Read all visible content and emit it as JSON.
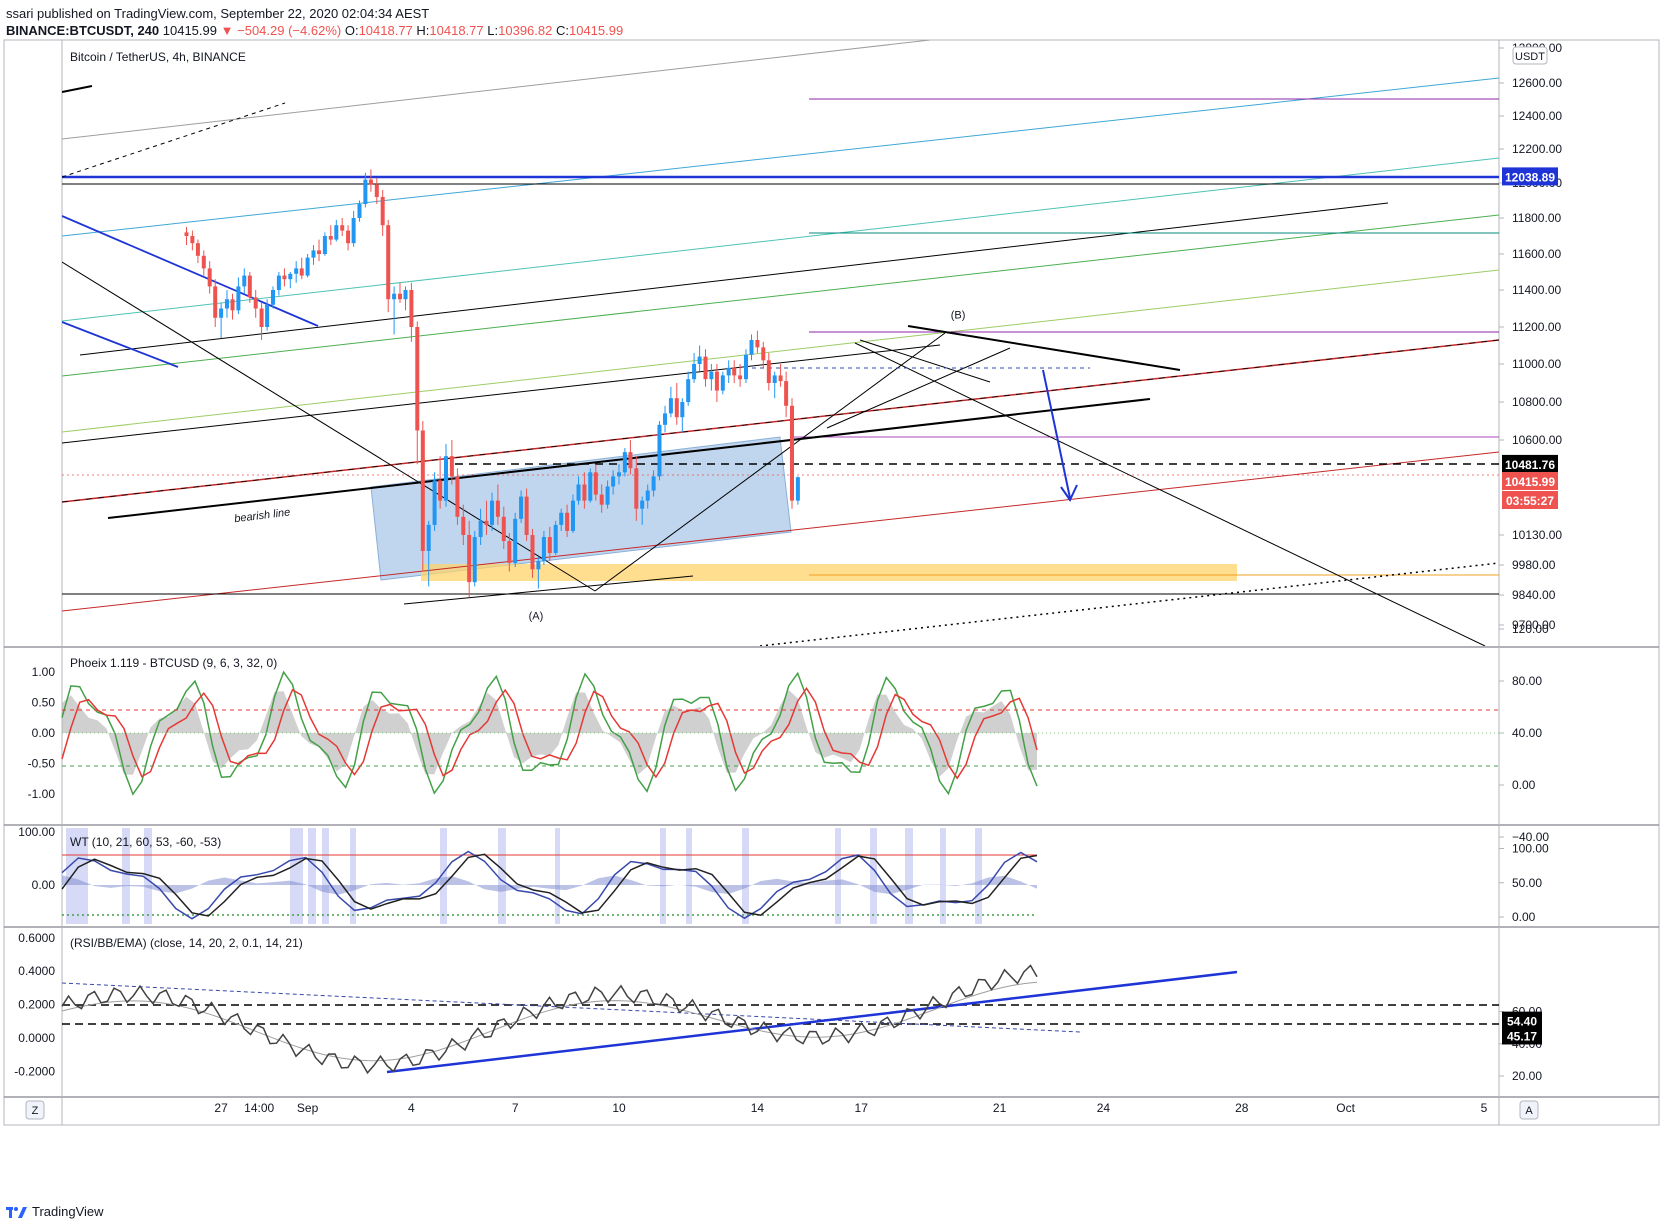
{
  "header": {
    "published": "ssari published on TradingView.com, September 22, 2020 02:04:34 AEST",
    "symbol": "BINANCE:BTCUSDT, 240",
    "last": "10415.99",
    "change": "−504.29 (−4.62%)",
    "o_label": "O:",
    "o": "10418.77",
    "h_label": "H:",
    "h": "10418.77",
    "l_label": "L:",
    "l": "10396.82",
    "c_label": "C:",
    "c": "10415.99"
  },
  "footer": {
    "brand": "TradingView"
  },
  "main_pane": {
    "title": "Bitcoin / TetherUS, 4h, BINANCE",
    "currency": "USDT",
    "top_tick": "12800.00",
    "price_ticks": [
      {
        "label": "12600.00",
        "v": 12600
      },
      {
        "label": "12400.00",
        "v": 12400
      },
      {
        "label": "12200.00",
        "v": 12200
      },
      {
        "label": "12000.00",
        "v": 12000
      },
      {
        "label": "11800.00",
        "v": 11800
      },
      {
        "label": "11600.00",
        "v": 11600
      },
      {
        "label": "11400.00",
        "v": 11400
      },
      {
        "label": "11200.00",
        "v": 11200
      },
      {
        "label": "11000.00",
        "v": 11000
      },
      {
        "label": "10800.00",
        "v": 10800
      },
      {
        "label": "10600.00",
        "v": 10600
      },
      {
        "label": "10130.00",
        "v": 10130
      },
      {
        "label": "9980.00",
        "v": 9980
      },
      {
        "label": "9840.00",
        "v": 9840
      },
      {
        "label": "9700.00",
        "v": 9700
      }
    ],
    "price_tags": [
      {
        "label": "12038.89",
        "v": 12038.89,
        "bg": "#1e34d6",
        "fg": "#ffffff"
      },
      {
        "label": "10481.76",
        "v": 10481.76,
        "bg": "#000000",
        "fg": "#ffffff"
      },
      {
        "label": "10415.99",
        "v": 10415.99,
        "bg": "#ef5350",
        "fg": "#ffffff"
      },
      {
        "label": "03:55:27",
        "v": 10300,
        "bg": "#ef5350",
        "fg": "#ffffff"
      }
    ],
    "annotations": [
      {
        "text": "(B)",
        "x": 9.8,
        "v": 11245
      },
      {
        "text": "(A)",
        "x": -2.4,
        "v": 9725
      },
      {
        "text": "bearish line",
        "x": -10.3,
        "v": 10210
      }
    ]
  },
  "phoenix_pane": {
    "title": "Phoeix 1.119 - BTCUSD (9, 6, 3, 32, 0)",
    "left_ticks": [
      {
        "label": "1.00",
        "v": 1
      },
      {
        "label": "0.50",
        "v": 0.5
      },
      {
        "label": "0.00",
        "v": 0
      },
      {
        "label": "-0.50",
        "v": -0.5
      },
      {
        "label": "-1.00",
        "v": -1
      }
    ],
    "right_ticks": [
      {
        "label": "120.00",
        "v": 120
      },
      {
        "label": "80.00",
        "v": 80
      },
      {
        "label": "40.00",
        "v": 40
      },
      {
        "label": "0.00",
        "v": 0
      },
      {
        "label": "−40.00",
        "v": -40
      }
    ]
  },
  "wt_pane": {
    "title": "WT (10, 21, 60, 53, -60, -53)",
    "left_ticks": [
      {
        "label": "100.00",
        "v": 100
      },
      {
        "label": "0.00",
        "v": 0
      }
    ],
    "right_ticks": [
      {
        "label": "100.00",
        "v": 100
      },
      {
        "label": "50.00",
        "v": 50
      },
      {
        "label": "0.00",
        "v": 0
      }
    ]
  },
  "rsi_pane": {
    "title": "(RSI/BB/EMA) (close, 14, 20, 2, 0.1, 14, 21)",
    "left_ticks": [
      {
        "label": "0.6000",
        "v": 0.6
      },
      {
        "label": "0.4000",
        "v": 0.4
      },
      {
        "label": "0.2000",
        "v": 0.2
      },
      {
        "label": "0.0000",
        "v": 0
      },
      {
        "label": "-0.2000",
        "v": -0.2
      }
    ],
    "right_ticks": [
      {
        "label": "60.00",
        "v": 60
      },
      {
        "label": "40.00",
        "v": 40
      },
      {
        "label": "20.00",
        "v": 20
      }
    ],
    "tags": [
      {
        "label": "54.40",
        "v": 54.4
      },
      {
        "label": "45.17",
        "v": 45.17
      }
    ]
  },
  "time_axis": {
    "labels": [
      {
        "label": "27",
        "d": -11.5
      },
      {
        "label": "14:00",
        "d": -10.4
      },
      {
        "label": "Sep",
        "d": -9
      },
      {
        "label": "4",
        "d": -6
      },
      {
        "label": "7",
        "d": -3
      },
      {
        "label": "10",
        "d": 0
      },
      {
        "label": "14",
        "d": 4
      },
      {
        "label": "17",
        "d": 7
      },
      {
        "label": "21",
        "d": 11
      },
      {
        "label": "24",
        "d": 14
      },
      {
        "label": "28",
        "d": 18
      },
      {
        "label": "Oct",
        "d": 21
      },
      {
        "label": "5",
        "d": 25
      }
    ],
    "left_button": "Z",
    "right_button": "A"
  },
  "chart_data": {
    "type": "candlestick",
    "title": "Bitcoin / TetherUS, 4h, BINANCE",
    "x_unit": "days relative to Sep 10, 2020 (4h candles)",
    "ylim": [
      9630,
      12820
    ],
    "candles": [
      [
        -12.5,
        11720,
        11750,
        11650,
        11700
      ],
      [
        -12.33,
        11700,
        11730,
        11620,
        11660
      ],
      [
        -12.17,
        11660,
        11680,
        11550,
        11590
      ],
      [
        -12.0,
        11590,
        11620,
        11480,
        11520
      ],
      [
        -11.83,
        11520,
        11560,
        11380,
        11420
      ],
      [
        -11.67,
        11420,
        11460,
        11200,
        11250
      ],
      [
        -11.5,
        11250,
        11330,
        11140,
        11300
      ],
      [
        -11.33,
        11300,
        11400,
        11250,
        11350
      ],
      [
        -11.17,
        11350,
        11380,
        11240,
        11290
      ],
      [
        -11.0,
        11290,
        11470,
        11270,
        11420
      ],
      [
        -10.83,
        11420,
        11520,
        11380,
        11480
      ],
      [
        -10.67,
        11480,
        11500,
        11330,
        11360
      ],
      [
        -10.5,
        11360,
        11400,
        11250,
        11300
      ],
      [
        -10.33,
        11300,
        11330,
        11130,
        11200
      ],
      [
        -10.17,
        11200,
        11350,
        11180,
        11320
      ],
      [
        -10.0,
        11320,
        11420,
        11300,
        11400
      ],
      [
        -9.83,
        11400,
        11500,
        11370,
        11480
      ],
      [
        -9.67,
        11480,
        11520,
        11420,
        11460
      ],
      [
        -9.5,
        11460,
        11500,
        11410,
        11490
      ],
      [
        -9.33,
        11490,
        11560,
        11440,
        11520
      ],
      [
        -9.17,
        11520,
        11580,
        11460,
        11480
      ],
      [
        -9.0,
        11480,
        11600,
        11470,
        11580
      ],
      [
        -8.83,
        11580,
        11650,
        11540,
        11620
      ],
      [
        -8.67,
        11620,
        11680,
        11560,
        11600
      ],
      [
        -8.5,
        11600,
        11720,
        11590,
        11700
      ],
      [
        -8.33,
        11700,
        11760,
        11650,
        11680
      ],
      [
        -8.17,
        11680,
        11790,
        11670,
        11760
      ],
      [
        -8.0,
        11760,
        11800,
        11700,
        11730
      ],
      [
        -7.83,
        11730,
        11760,
        11620,
        11660
      ],
      [
        -7.67,
        11660,
        11840,
        11640,
        11800
      ],
      [
        -7.5,
        11800,
        11900,
        11780,
        11880
      ],
      [
        -7.33,
        11880,
        12060,
        11860,
        12020
      ],
      [
        -7.17,
        12020,
        12080,
        11950,
        11990
      ],
      [
        -7.0,
        11990,
        12030,
        11880,
        11920
      ],
      [
        -6.83,
        11920,
        11960,
        11700,
        11760
      ],
      [
        -6.67,
        11760,
        11790,
        11280,
        11350
      ],
      [
        -6.5,
        11350,
        11420,
        11160,
        11380
      ],
      [
        -6.33,
        11380,
        11440,
        11330,
        11350
      ],
      [
        -6.17,
        11350,
        11420,
        11290,
        11400
      ],
      [
        -6.0,
        11400,
        11440,
        11120,
        11200
      ],
      [
        -5.83,
        11200,
        11230,
        10480,
        10650
      ],
      [
        -5.67,
        10650,
        10700,
        9950,
        10050
      ],
      [
        -5.5,
        10050,
        10200,
        9880,
        10180
      ],
      [
        -5.33,
        10180,
        10440,
        10150,
        10400
      ],
      [
        -5.17,
        10400,
        10520,
        10260,
        10300
      ],
      [
        -5.0,
        10300,
        10580,
        10270,
        10520
      ],
      [
        -4.83,
        10520,
        10600,
        10380,
        10420
      ],
      [
        -4.67,
        10420,
        10460,
        10180,
        10220
      ],
      [
        -4.5,
        10220,
        10280,
        10080,
        10130
      ],
      [
        -4.33,
        10130,
        10200,
        9830,
        9900
      ],
      [
        -4.17,
        9900,
        10150,
        9880,
        10120
      ],
      [
        -4.0,
        10120,
        10260,
        10080,
        10200
      ],
      [
        -3.83,
        10200,
        10300,
        10130,
        10180
      ],
      [
        -3.67,
        10180,
        10340,
        10150,
        10300
      ],
      [
        -3.5,
        10300,
        10380,
        10180,
        10220
      ],
      [
        -3.33,
        10220,
        10270,
        10060,
        10100
      ],
      [
        -3.17,
        10100,
        10140,
        9950,
        9990
      ],
      [
        -3.0,
        9990,
        10240,
        9970,
        10210
      ],
      [
        -2.83,
        10210,
        10350,
        10190,
        10320
      ],
      [
        -2.67,
        10320,
        10360,
        10100,
        10130
      ],
      [
        -2.5,
        10130,
        10160,
        9920,
        9960
      ],
      [
        -2.33,
        9960,
        10020,
        9870,
        10000
      ],
      [
        -2.17,
        10000,
        10150,
        9980,
        10120
      ],
      [
        -2.0,
        10120,
        10170,
        10000,
        10040
      ],
      [
        -1.83,
        10040,
        10200,
        10030,
        10180
      ],
      [
        -1.67,
        10180,
        10260,
        10150,
        10240
      ],
      [
        -1.5,
        10240,
        10280,
        10120,
        10150
      ],
      [
        -1.33,
        10150,
        10330,
        10140,
        10300
      ],
      [
        -1.17,
        10300,
        10420,
        10280,
        10380
      ],
      [
        -1.0,
        10380,
        10440,
        10260,
        10300
      ],
      [
        -0.83,
        10300,
        10460,
        10290,
        10440
      ],
      [
        -0.67,
        10440,
        10480,
        10300,
        10330
      ],
      [
        -0.5,
        10330,
        10380,
        10240,
        10280
      ],
      [
        -0.33,
        10280,
        10400,
        10260,
        10370
      ],
      [
        -0.17,
        10370,
        10450,
        10330,
        10420
      ],
      [
        0.0,
        10420,
        10480,
        10380,
        10440
      ],
      [
        0.17,
        10440,
        10560,
        10420,
        10540
      ],
      [
        0.33,
        10540,
        10600,
        10430,
        10460
      ],
      [
        0.5,
        10460,
        10520,
        10200,
        10260
      ],
      [
        0.67,
        10260,
        10320,
        10180,
        10300
      ],
      [
        0.83,
        10300,
        10380,
        10260,
        10350
      ],
      [
        1.0,
        10350,
        10450,
        10320,
        10420
      ],
      [
        1.17,
        10420,
        10700,
        10400,
        10680
      ],
      [
        1.33,
        10680,
        10780,
        10640,
        10740
      ],
      [
        1.5,
        10740,
        10880,
        10720,
        10820
      ],
      [
        1.67,
        10820,
        10900,
        10680,
        10720
      ],
      [
        1.83,
        10720,
        10820,
        10640,
        10800
      ],
      [
        2.0,
        10800,
        10960,
        10780,
        10920
      ],
      [
        2.17,
        10920,
        11060,
        10900,
        11000
      ],
      [
        2.33,
        11000,
        11100,
        10960,
        11040
      ],
      [
        2.5,
        11040,
        11080,
        10880,
        10920
      ],
      [
        2.67,
        10920,
        11000,
        10860,
        10960
      ],
      [
        2.83,
        10960,
        11000,
        10800,
        10860
      ],
      [
        3.0,
        10860,
        10960,
        10840,
        10940
      ],
      [
        3.17,
        10940,
        11020,
        10900,
        10980
      ],
      [
        3.33,
        10980,
        11020,
        10900,
        10940
      ],
      [
        3.5,
        10940,
        11000,
        10880,
        10920
      ],
      [
        3.67,
        10920,
        11080,
        10900,
        11050
      ],
      [
        3.83,
        11050,
        11160,
        11020,
        11130
      ],
      [
        4.0,
        11130,
        11180,
        11060,
        11090
      ],
      [
        4.17,
        11090,
        11120,
        10980,
        11020
      ],
      [
        4.33,
        11020,
        11060,
        10860,
        10900
      ],
      [
        4.5,
        10900,
        10960,
        10820,
        10940
      ],
      [
        4.67,
        10940,
        11000,
        10880,
        10910
      ],
      [
        4.83,
        10910,
        10960,
        10720,
        10780
      ],
      [
        5.0,
        10780,
        10820,
        10260,
        10300
      ],
      [
        5.17,
        10300,
        10420,
        10280,
        10416
      ]
    ]
  }
}
